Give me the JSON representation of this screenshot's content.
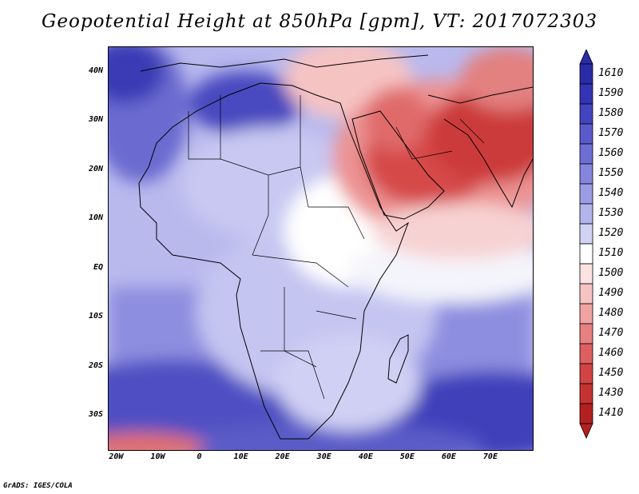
{
  "title": "Geopotential Height at 850hPa [gpm], VT: 2017072303",
  "credit": "GrADS: IGES/COLA",
  "lat_labels": [
    {
      "lat": 40,
      "text": "40N"
    },
    {
      "lat": 30,
      "text": "30N"
    },
    {
      "lat": 20,
      "text": "20N"
    },
    {
      "lat": 10,
      "text": "10N"
    },
    {
      "lat": 0,
      "text": "EQ"
    },
    {
      "lat": -10,
      "text": "10S"
    },
    {
      "lat": -20,
      "text": "20S"
    },
    {
      "lat": -30,
      "text": "30S"
    }
  ],
  "lon_labels": [
    {
      "lon": -20,
      "text": "20W"
    },
    {
      "lon": -10,
      "text": "10W"
    },
    {
      "lon": 0,
      "text": "0"
    },
    {
      "lon": 10,
      "text": "10E"
    },
    {
      "lon": 20,
      "text": "20E"
    },
    {
      "lon": 30,
      "text": "30E"
    },
    {
      "lon": 40,
      "text": "40E"
    },
    {
      "lon": 50,
      "text": "50E"
    },
    {
      "lon": 60,
      "text": "60E"
    },
    {
      "lon": 70,
      "text": "70E"
    }
  ],
  "colorbar": {
    "levels": [
      "1610",
      "1590",
      "1580",
      "1570",
      "1560",
      "1550",
      "1540",
      "1530",
      "1520",
      "1510",
      "1500",
      "1490",
      "1480",
      "1470",
      "1460",
      "1450",
      "1430",
      "1410"
    ],
    "colors": [
      "#2b2ba8",
      "#3434b4",
      "#4444c0",
      "#5a5acb",
      "#6e6ed4",
      "#8585dd",
      "#9c9ce5",
      "#b4b4ed",
      "#d2d2f5",
      "#ffffff",
      "#fbe3e3",
      "#f6c3c3",
      "#f0a3a3",
      "#e78080",
      "#dd5f5f",
      "#d24444",
      "#c43232",
      "#b22020"
    ]
  },
  "colors": {
    "ocean": "#a9a9ea",
    "land": "#d6d6f6",
    "coast": "#000000"
  }
}
